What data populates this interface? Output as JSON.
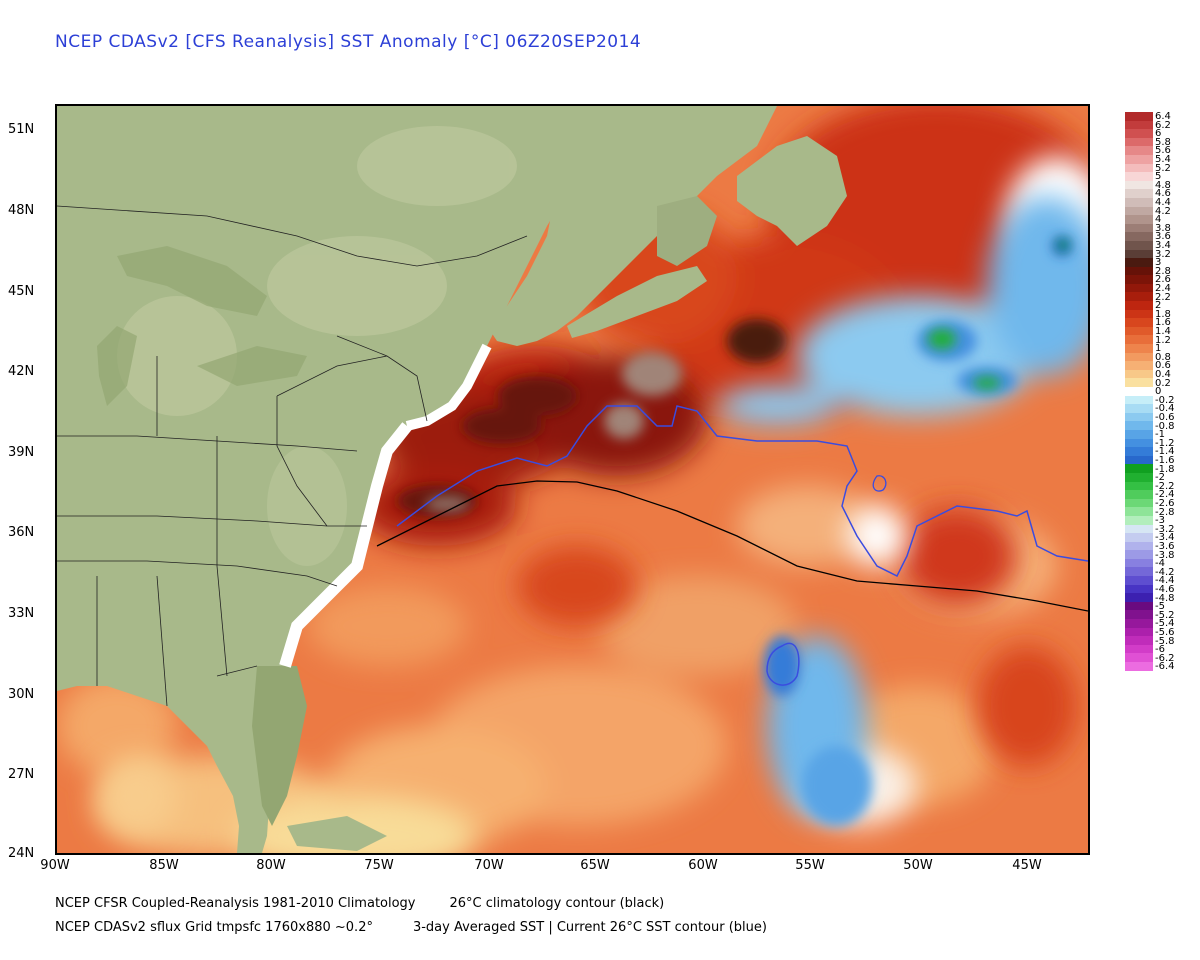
{
  "title": "NCEP CDASv2 [CFS Reanalysis] SST Anomaly [°C] 06Z20SEP2014",
  "axes": {
    "lat_labels": [
      "51N",
      "48N",
      "45N",
      "42N",
      "39N",
      "36N",
      "33N",
      "30N",
      "27N",
      "24N"
    ],
    "lon_labels": [
      "90W",
      "85W",
      "80W",
      "75W",
      "70W",
      "65W",
      "60W",
      "55W",
      "50W",
      "45W"
    ]
  },
  "legend": {
    "labels": [
      "6.4",
      "6.2",
      "6",
      "5.8",
      "5.6",
      "5.4",
      "5.2",
      "5",
      "4.8",
      "4.6",
      "4.4",
      "4.2",
      "4",
      "3.8",
      "3.6",
      "3.4",
      "3.2",
      "3",
      "2.8",
      "2.6",
      "2.4",
      "2.2",
      "2",
      "1.8",
      "1.6",
      "1.4",
      "1.2",
      "1",
      "0.8",
      "0.6",
      "0.4",
      "0.2",
      "0",
      "-0.2",
      "-0.4",
      "-0.6",
      "-0.8",
      "-1",
      "-1.2",
      "-1.4",
      "-1.6",
      "-1.8",
      "-2",
      "-2.2",
      "-2.4",
      "-2.6",
      "-2.8",
      "-3",
      "-3.2",
      "-3.4",
      "-3.6",
      "-3.8",
      "-4",
      "-4.2",
      "-4.4",
      "-4.6",
      "-4.8",
      "-5",
      "-5.2",
      "-5.4",
      "-5.6",
      "-5.8",
      "-6",
      "-6.2",
      "-6.4"
    ],
    "colors": [
      "#b22a2a",
      "#c23c3c",
      "#d05050",
      "#dc6a6a",
      "#e68888",
      "#eea2a2",
      "#f4bcbc",
      "#f8d6d6",
      "#f0e6e2",
      "#e0d0cc",
      "#d0bcb8",
      "#c0a8a2",
      "#b0948c",
      "#9c7e76",
      "#866860",
      "#70544c",
      "#5a3e36",
      "#4a1a10",
      "#661208",
      "#7c1408",
      "#92180a",
      "#a81e0c",
      "#be2610",
      "#cc3416",
      "#d8461e",
      "#e05a2a",
      "#e86e3a",
      "#ee844c",
      "#f29a60",
      "#f6b074",
      "#f8c888",
      "#fae0a0",
      "#ffffff",
      "#c6eef8",
      "#a8dcf4",
      "#8ccaf0",
      "#70b8ec",
      "#58a4e6",
      "#4490e0",
      "#347cd8",
      "#2868cc",
      "#10a020",
      "#20b030",
      "#34c044",
      "#50cc5c",
      "#6cd876",
      "#8ee498",
      "#b2eebc",
      "#d6e6f4",
      "#c4ccf0",
      "#b0b2ec",
      "#9c9ae6",
      "#8880e0",
      "#7468d8",
      "#5e4ed0",
      "#4834c4",
      "#3c20b0",
      "#6a0a80",
      "#80128e",
      "#96189c",
      "#ac20ac",
      "#c02cba",
      "#d23cc8",
      "#e050d4",
      "#ec6ce0"
    ]
  },
  "footer": {
    "line1_left": "NCEP CFSR Coupled-Reanalysis 1981-2010 Climatology",
    "line1_right": "26°C climatology contour (black)",
    "line2_left": "NCEP CDASv2 sflux Grid tmpsfc 1760x880 ~0.2°",
    "line2_right": "3-day Averaged SST | Current 26°C SST contour (blue)"
  },
  "colors": {
    "land": "#a8b98a",
    "land_light": "#c2cca2",
    "ocean_base": "#ee844c",
    "contour_climatology": "#000000",
    "contour_current": "#3a4ce0"
  }
}
